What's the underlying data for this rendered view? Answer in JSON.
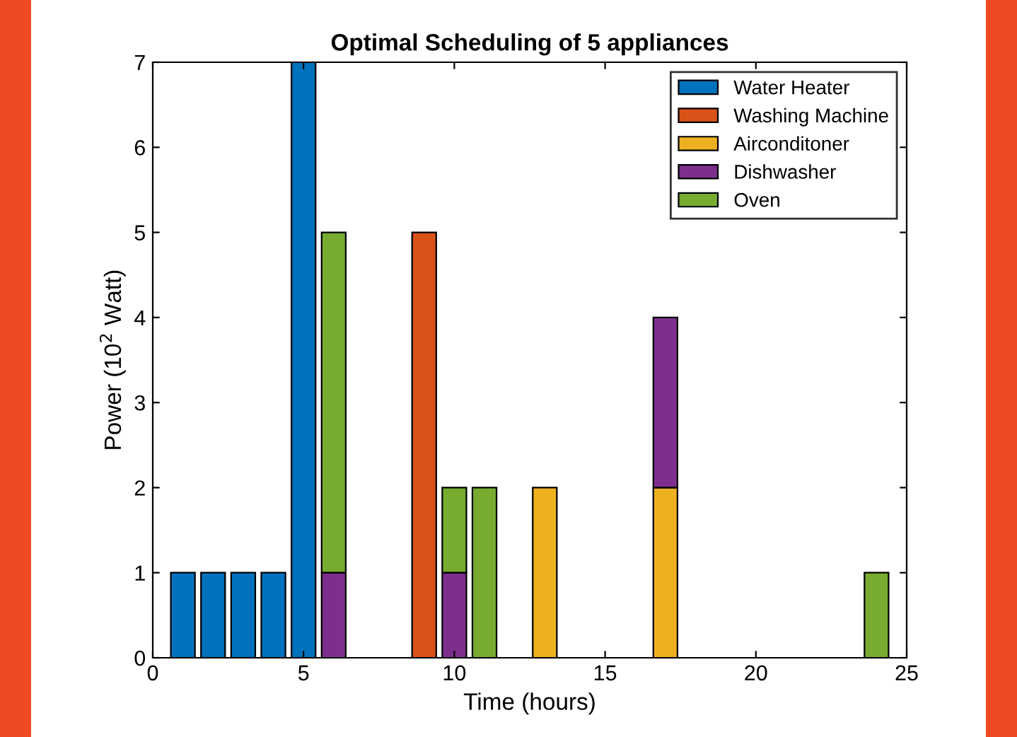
{
  "chart_data": {
    "type": "bar",
    "stacked": true,
    "title": "Optimal Scheduling of 5 appliances",
    "xlabel": "Time (hours)",
    "ylabel": "Power (10$^{2}$ Watt)",
    "x": [
      1,
      2,
      3,
      4,
      5,
      6,
      9,
      10,
      11,
      13,
      17,
      24
    ],
    "series": [
      {
        "name": "Water Heater",
        "color": "#0072bd",
        "values": [
          1,
          1,
          1,
          1,
          7,
          null,
          null,
          null,
          null,
          null,
          null,
          null
        ]
      },
      {
        "name": "Washing Machine",
        "color": "#d95319",
        "values": [
          null,
          null,
          null,
          null,
          null,
          null,
          5,
          null,
          null,
          null,
          null,
          null
        ]
      },
      {
        "name": "Airconditoner",
        "color": "#edb120",
        "values": [
          null,
          null,
          null,
          null,
          null,
          null,
          null,
          null,
          null,
          2,
          2,
          null
        ]
      },
      {
        "name": "Dishwasher",
        "color": "#7e2f8e",
        "values": [
          null,
          null,
          null,
          null,
          null,
          1,
          null,
          1,
          null,
          null,
          2,
          null
        ]
      },
      {
        "name": "Oven",
        "color": "#77ac30",
        "values": [
          null,
          null,
          null,
          null,
          null,
          4,
          null,
          1,
          2,
          null,
          null,
          1
        ]
      }
    ],
    "xlim": [
      0,
      25
    ],
    "xticks": [
      0,
      5,
      10,
      15,
      20,
      25
    ],
    "ylim": [
      0,
      7
    ],
    "yticks": [
      0,
      1,
      2,
      3,
      4,
      5,
      6,
      7
    ],
    "grid": false,
    "legend": "top right"
  }
}
